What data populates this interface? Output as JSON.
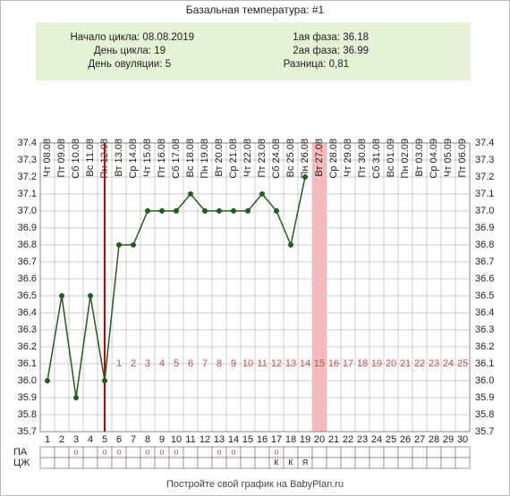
{
  "chart_data": {
    "type": "line",
    "title": "Базальная температура: #1",
    "info_left": [
      "Начало цикла: 08.08.2019",
      "День цикла: 19",
      "День овуляции: 5"
    ],
    "info_right": [
      "1ая фаза: 36.18",
      "2ая фаза: 36.99",
      "Разница: 0,81"
    ],
    "categories": [
      1,
      2,
      3,
      4,
      5,
      6,
      7,
      8,
      9,
      10,
      11,
      12,
      13,
      14,
      15,
      16,
      17,
      18,
      19,
      20,
      21,
      22,
      23,
      24,
      25,
      26,
      27,
      28,
      29,
      30
    ],
    "dates": [
      "Чт 08.08",
      "Пт 09.08",
      "Сб 10.08",
      "Вс 11.08",
      "Пн 12.08",
      "Вт 13.08",
      "Ср 14.08",
      "Чт 15.08",
      "Пт 16.08",
      "Сб 17.08",
      "Вс 18.08",
      "Пн 19.08",
      "Вт 20.08",
      "Ср 21.08",
      "Чт 22.08",
      "Пт 23.08",
      "Сб 24.08",
      "Вс 25.08",
      "Пн 26.08",
      "Вт 27.08",
      "Ср 28.08",
      "Чт 29.08",
      "Пт 30.08",
      "Сб 31.08",
      "Вс 01.09",
      "Пн 02.09",
      "Вт 03.09",
      "Ср 04.09",
      "Чт 05.09",
      "Пт 06.09"
    ],
    "series": [
      {
        "name": "Базальная температура",
        "color": "#1e5e1e",
        "values": [
          36.0,
          36.5,
          35.9,
          36.5,
          36.0,
          36.8,
          36.8,
          37.0,
          37.0,
          37.0,
          37.1,
          37.0,
          37.0,
          37.0,
          37.0,
          37.1,
          37.0,
          36.8,
          37.2,
          null,
          null,
          null,
          null,
          null,
          null,
          null,
          null,
          null,
          null,
          null
        ]
      }
    ],
    "phase_days": [
      null,
      null,
      null,
      null,
      null,
      1,
      2,
      3,
      4,
      5,
      6,
      7,
      8,
      9,
      10,
      11,
      12,
      13,
      14,
      15,
      16,
      17,
      18,
      19,
      20,
      21,
      22,
      23,
      24,
      25
    ],
    "phase_label_level": 36.1,
    "ovulation_day": 5,
    "highlight_day": 20,
    "ylim": [
      35.7,
      37.4
    ],
    "yticks": [
      35.7,
      35.8,
      35.9,
      {
        "value": 36.0,
        "label": "36.0"
      },
      36.1,
      36.2,
      36.3,
      36.4,
      36.5,
      36.6,
      36.7,
      36.8,
      36.9,
      {
        "value": 37.0,
        "label": "37.0"
      },
      37.1,
      37.2,
      37.3,
      37.4
    ],
    "grid": true,
    "rows": [
      {
        "name": "ПА",
        "marks": [
          null,
          null,
          "о",
          null,
          "о",
          "о",
          null,
          "о",
          "о",
          "о",
          null,
          null,
          "о",
          "о",
          null,
          null,
          "о",
          null,
          null,
          null,
          null,
          null,
          null,
          null,
          null,
          null,
          null,
          null,
          null,
          null
        ]
      },
      {
        "name": "ЦЖ",
        "marks": [
          null,
          null,
          null,
          null,
          null,
          null,
          null,
          null,
          null,
          null,
          null,
          null,
          null,
          null,
          null,
          null,
          "К",
          "К",
          "Я",
          null,
          null,
          null,
          null,
          null,
          null,
          null,
          null,
          null,
          null,
          null
        ]
      }
    ],
    "footer": "Постройте свой график на BabyPlan.ru"
  }
}
